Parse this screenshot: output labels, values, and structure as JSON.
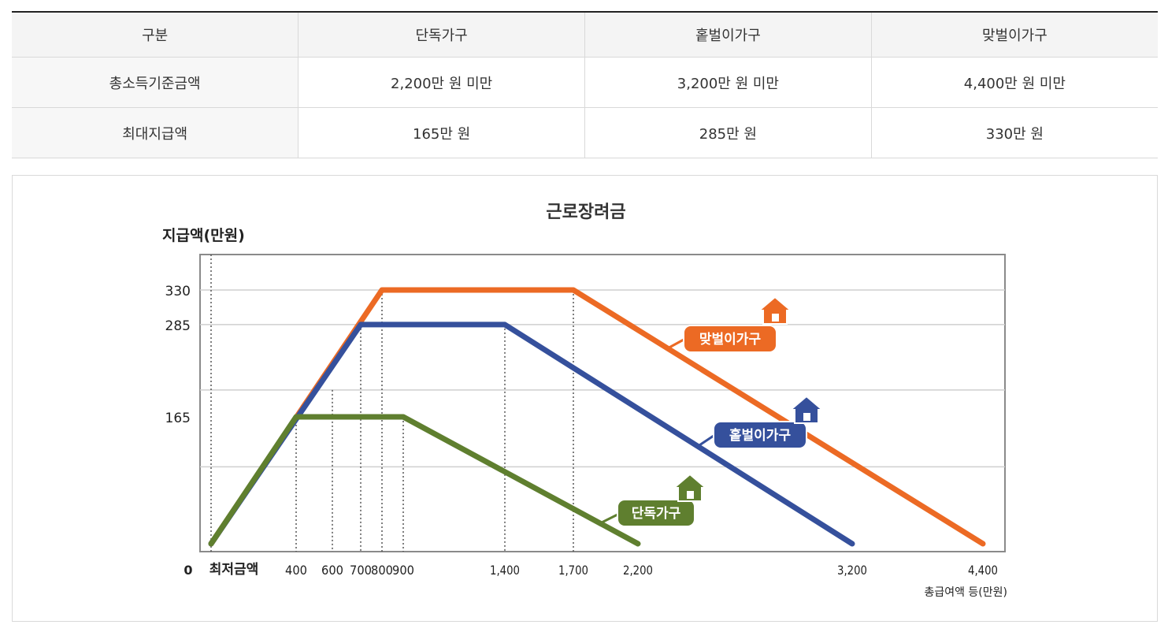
{
  "table": {
    "headers": [
      "구분",
      "단독가구",
      "홑벌이가구",
      "맞벌이가구"
    ],
    "rows": [
      {
        "label": "총소득기준금액",
        "values": [
          "2,200만 원 미만",
          "3,200만 원 미만",
          "4,400만 원 미만"
        ]
      },
      {
        "label": "최대지급액",
        "values": [
          "165만 원",
          "285만 원",
          "330만 원"
        ]
      }
    ]
  },
  "chart_data": {
    "type": "line",
    "title": "근로장려금",
    "ylabel": "지급액(만원)",
    "xlabel": "총급여액 등(만원)",
    "min_label": "최저금액",
    "zero_label": "0",
    "x_ticks": [
      {
        "value": 400,
        "label": "400"
      },
      {
        "value": 600,
        "label": "600"
      },
      {
        "value": 700,
        "label": "700"
      },
      {
        "value": 800,
        "label": "800"
      },
      {
        "value": 900,
        "label": "900"
      },
      {
        "value": 1400,
        "label": "1,400"
      },
      {
        "value": 1700,
        "label": "1,700"
      },
      {
        "value": 2200,
        "label": "2,200"
      },
      {
        "value": 3200,
        "label": "3,200"
      },
      {
        "value": 4400,
        "label": "4,400"
      }
    ],
    "y_ticks": [
      {
        "value": 330,
        "label": "330"
      },
      {
        "value": 285,
        "label": "285"
      },
      {
        "value": 165,
        "label": "165"
      }
    ],
    "gridlines_y": [
      330,
      285,
      200,
      100
    ],
    "xlim": [
      0,
      4400
    ],
    "ylim": [
      0,
      330
    ],
    "series": [
      {
        "name": "맞벌이가구",
        "color": "#ec6a24",
        "points": [
          [
            0,
            0
          ],
          [
            800,
            330
          ],
          [
            1700,
            330
          ],
          [
            4400,
            0
          ]
        ]
      },
      {
        "name": "홑벌이가구",
        "color": "#35509c",
        "points": [
          [
            0,
            0
          ],
          [
            700,
            285
          ],
          [
            1400,
            285
          ],
          [
            3200,
            0
          ]
        ]
      },
      {
        "name": "단독가구",
        "color": "#5f7f2f",
        "points": [
          [
            0,
            0
          ],
          [
            400,
            165
          ],
          [
            900,
            165
          ],
          [
            2200,
            0
          ]
        ]
      }
    ],
    "legend_placement": "inline-labels",
    "icon": "house-icon"
  }
}
